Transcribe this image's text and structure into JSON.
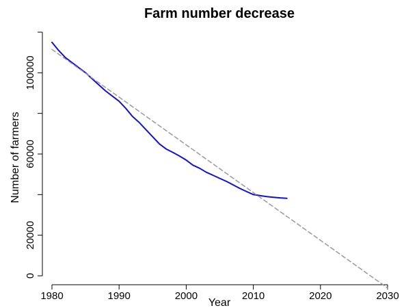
{
  "chart_data": {
    "type": "line",
    "title": "Farm number decrease",
    "xlabel": "Year",
    "ylabel": "Number of farmers",
    "xlim": [
      1980,
      2030
    ],
    "ylim": [
      0,
      120000
    ],
    "x_ticks": [
      "1980",
      "1990",
      "2000",
      "2010",
      "2020",
      "2030"
    ],
    "y_ticks": [
      "0",
      "20000",
      "60000",
      "100000"
    ],
    "grid": false,
    "legend": "none",
    "series": [
      {
        "x": [
          1980,
          1981,
          1982,
          1983,
          1984,
          1985,
          1986,
          1987,
          1988,
          1989,
          1990,
          1991,
          1992,
          1993,
          1994,
          1995,
          1996,
          1997,
          1998,
          1999,
          2000,
          2001,
          2002,
          2003,
          2004,
          2005,
          2006,
          2007,
          2008,
          2009,
          2010,
          2011,
          2012,
          2013,
          2014,
          2015
        ],
        "y": [
          115000,
          111000,
          107500,
          105000,
          102500,
          100000,
          97000,
          94000,
          91000,
          88500,
          86000,
          82500,
          78500,
          75500,
          72000,
          68500,
          65000,
          62500,
          60800,
          59000,
          57000,
          54500,
          53000,
          51000,
          49500,
          48000,
          46500,
          44800,
          43000,
          41500,
          40000,
          39500,
          39000,
          38700,
          38400,
          38200
        ],
        "color": "#1010d8"
      },
      {
        "x": [
          1980,
          2030
        ],
        "y": [
          111500,
          -6000
        ],
        "color": "#999999",
        "style": "dashed"
      }
    ]
  }
}
